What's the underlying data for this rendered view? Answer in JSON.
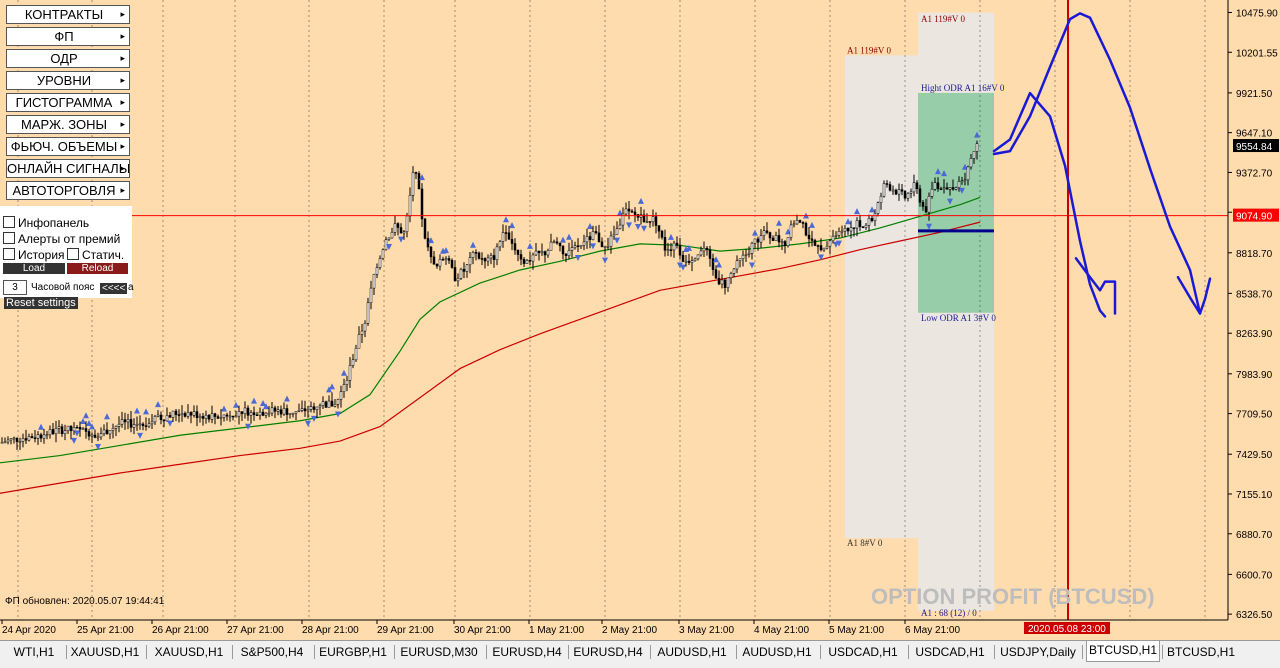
{
  "colors": {
    "background": "#ffdcae",
    "candle": "#000000",
    "ma_fast": "#008000",
    "ma_slow": "#cc0000",
    "level_line": "#ff0000",
    "marker": "#4b6ad6",
    "annotation": "#1a1ad6",
    "band_gray": "#e8e8e8",
    "band_green": "#8fcaa4",
    "highlight_label": "#cc0000",
    "crosshair": "#cc0000"
  },
  "menu": {
    "items": [
      {
        "label": "КОНТРАКТЫ",
        "arrow": "▸"
      },
      {
        "label": "ФП",
        "arrow": "▸"
      },
      {
        "label": "ОДР",
        "arrow": "▸"
      },
      {
        "label": "УРОВНИ",
        "arrow": "▸"
      },
      {
        "label": "ГИСТОГРАММА",
        "arrow": "▸"
      },
      {
        "label": "МАРЖ. ЗОНЫ",
        "arrow": "▸"
      },
      {
        "label": "ФЬЮЧ. ОБЪЕМЫ",
        "arrow": "▸"
      },
      {
        "label": "ОНЛАЙН СИГНАЛЫ",
        "arrow": "▸"
      },
      {
        "label": "АВТОТОРГОВЛЯ",
        "arrow": "▸"
      }
    ]
  },
  "checks": {
    "infopanel": "Инфопанель",
    "alerts": "Алерты от премий",
    "history": "История",
    "static": "Статич.",
    "load": "Load",
    "reload": "Reload",
    "tz_value": "3",
    "tz_label": "Часовой пояс",
    "tz_button": "<<<<",
    "tz_suffix": "а",
    "reset": "Reset settings"
  },
  "status": {
    "fp_updated": "ФП обновлен: 2020.05.07 19:44:41"
  },
  "watermark": "OPTION PROFIT (BTCUSD)",
  "tabs": [
    "WTI,H1",
    "XAUUSD,H1",
    "XAUUSD,H1",
    "S&P500,H4",
    "EURGBP,H1",
    "EURUSD,M30",
    "EURUSD,H4",
    "EURUSD,H4",
    "AUDUSD,H1",
    "AUDUSD,H1",
    "USDCAD,H1",
    "USDCAD,H1",
    "USDJPY,Daily",
    "BTCUSD,H1",
    "BTCUSD,H1"
  ],
  "active_tab": 13,
  "chart_data": {
    "type": "candlestick",
    "symbol": "BTCUSD,H1",
    "y_ticks": [
      10475.9,
      10201.55,
      9921.5,
      9647.1,
      9372.7,
      9098.35,
      8818.7,
      8538.7,
      8263.9,
      7983.9,
      7709.5,
      7429.5,
      7155.1,
      6880.7,
      6600.7,
      6326.5
    ],
    "ylim": [
      6286,
      10562
    ],
    "x_ticks": [
      "24 Apr 2020",
      "25 Apr 21:00",
      "26 Apr 21:00",
      "27 Apr 21:00",
      "28 Apr 21:00",
      "29 Apr 21:00",
      "30 Apr 21:00",
      "1 May 21:00",
      "2 May 21:00",
      "3 May 21:00",
      "4 May 21:00",
      "5 May 21:00",
      "6 May 21:00"
    ],
    "current_price": 9554.84,
    "horizontal_level": 9074.9,
    "crosshair_time": "2020.05.08 23:00",
    "close_path": [
      [
        0,
        7510
      ],
      [
        20,
        7540
      ],
      [
        40,
        7560
      ],
      [
        60,
        7600
      ],
      [
        80,
        7590
      ],
      [
        100,
        7570
      ],
      [
        120,
        7640
      ],
      [
        140,
        7640
      ],
      [
        160,
        7680
      ],
      [
        180,
        7720
      ],
      [
        200,
        7700
      ],
      [
        220,
        7690
      ],
      [
        240,
        7730
      ],
      [
        260,
        7720
      ],
      [
        280,
        7730
      ],
      [
        300,
        7720
      ],
      [
        320,
        7780
      ],
      [
        335,
        7770
      ],
      [
        345,
        7900
      ],
      [
        355,
        8150
      ],
      [
        365,
        8350
      ],
      [
        375,
        8700
      ],
      [
        385,
        8900
      ],
      [
        395,
        9000
      ],
      [
        405,
        8950
      ],
      [
        415,
        9450
      ],
      [
        425,
        8900
      ],
      [
        435,
        8700
      ],
      [
        445,
        8800
      ],
      [
        455,
        8650
      ],
      [
        465,
        8700
      ],
      [
        475,
        8820
      ],
      [
        485,
        8750
      ],
      [
        495,
        8800
      ],
      [
        505,
        9000
      ],
      [
        515,
        8850
      ],
      [
        525,
        8750
      ],
      [
        535,
        8800
      ],
      [
        545,
        8820
      ],
      [
        555,
        8900
      ],
      [
        565,
        8780
      ],
      [
        575,
        8850
      ],
      [
        585,
        8900
      ],
      [
        595,
        8950
      ],
      [
        605,
        8850
      ],
      [
        615,
        8950
      ],
      [
        625,
        9100
      ],
      [
        635,
        9080
      ],
      [
        645,
        9050
      ],
      [
        655,
        9050
      ],
      [
        665,
        8850
      ],
      [
        675,
        8870
      ],
      [
        685,
        8750
      ],
      [
        695,
        8800
      ],
      [
        705,
        8850
      ],
      [
        715,
        8650
      ],
      [
        725,
        8600
      ],
      [
        735,
        8720
      ],
      [
        745,
        8800
      ],
      [
        755,
        8900
      ],
      [
        765,
        8950
      ],
      [
        775,
        8920
      ],
      [
        785,
        8880
      ],
      [
        795,
        9050
      ],
      [
        805,
        8980
      ],
      [
        815,
        8850
      ],
      [
        825,
        8880
      ],
      [
        835,
        8950
      ],
      [
        845,
        8960
      ],
      [
        855,
        9020
      ],
      [
        865,
        9000
      ],
      [
        875,
        9080
      ],
      [
        885,
        9300
      ],
      [
        895,
        9250
      ],
      [
        905,
        9200
      ],
      [
        915,
        9280
      ],
      [
        925,
        9100
      ],
      [
        935,
        9300
      ],
      [
        945,
        9250
      ],
      [
        955,
        9250
      ],
      [
        965,
        9350
      ],
      [
        975,
        9554
      ]
    ],
    "ma_fast": [
      [
        0,
        7370
      ],
      [
        60,
        7420
      ],
      [
        120,
        7490
      ],
      [
        180,
        7560
      ],
      [
        240,
        7610
      ],
      [
        300,
        7660
      ],
      [
        340,
        7710
      ],
      [
        370,
        7840
      ],
      [
        400,
        8140
      ],
      [
        420,
        8360
      ],
      [
        440,
        8480
      ],
      [
        480,
        8610
      ],
      [
        520,
        8700
      ],
      [
        560,
        8760
      ],
      [
        600,
        8830
      ],
      [
        640,
        8880
      ],
      [
        680,
        8870
      ],
      [
        720,
        8830
      ],
      [
        760,
        8850
      ],
      [
        800,
        8880
      ],
      [
        840,
        8920
      ],
      [
        880,
        8990
      ],
      [
        920,
        9070
      ],
      [
        960,
        9150
      ],
      [
        980,
        9200
      ]
    ],
    "ma_slow": [
      [
        0,
        7160
      ],
      [
        60,
        7230
      ],
      [
        120,
        7300
      ],
      [
        180,
        7360
      ],
      [
        240,
        7420
      ],
      [
        300,
        7470
      ],
      [
        340,
        7520
      ],
      [
        380,
        7620
      ],
      [
        420,
        7820
      ],
      [
        460,
        8020
      ],
      [
        500,
        8150
      ],
      [
        540,
        8260
      ],
      [
        580,
        8360
      ],
      [
        620,
        8460
      ],
      [
        660,
        8560
      ],
      [
        700,
        8610
      ],
      [
        740,
        8660
      ],
      [
        780,
        8710
      ],
      [
        820,
        8770
      ],
      [
        860,
        8840
      ],
      [
        900,
        8900
      ],
      [
        940,
        8960
      ],
      [
        980,
        9030
      ]
    ],
    "bands": [
      {
        "from": 845,
        "to": 918,
        "top": 10180,
        "bottom": 6850,
        "label_top": "A1 119#V 0",
        "label_bottom": "A1 8#V 0"
      },
      {
        "from": 918,
        "to": 994,
        "top": 10475,
        "bottom": 6350,
        "label_top": "A1 119#V 0",
        "label_bottom": "A1 : 68 (12) / 0"
      }
    ],
    "odr_box": {
      "from": 918,
      "to": 994,
      "high": 9921,
      "low": 8405,
      "label_high": "Hight ODR A1 16#V 0",
      "label_low": "Low ODR A1 3#V 0",
      "mid_level": 8970
    },
    "forecast_strokes": [
      [
        [
          994,
          9500
        ],
        [
          1010,
          9520
        ],
        [
          1030,
          9760
        ],
        [
          1050,
          10100
        ],
        [
          1070,
          10430
        ],
        [
          1080,
          10470
        ],
        [
          1090,
          10440
        ],
        [
          1110,
          10150
        ],
        [
          1130,
          9820
        ],
        [
          1150,
          9400
        ],
        [
          1170,
          9000
        ],
        [
          1190,
          8700
        ],
        [
          1200,
          8400
        ]
      ],
      [
        [
          994,
          9520
        ],
        [
          1010,
          9600
        ],
        [
          1030,
          9920
        ],
        [
          1050,
          9760
        ],
        [
          1065,
          9420
        ],
        [
          1080,
          8900
        ],
        [
          1090,
          8600
        ],
        [
          1100,
          8420
        ],
        [
          1105,
          8380
        ]
      ],
      [
        [
          1076,
          8780
        ],
        [
          1090,
          8650
        ],
        [
          1100,
          8560
        ],
        [
          1105,
          8620
        ],
        [
          1115,
          8620
        ],
        [
          1115,
          8400
        ]
      ],
      [
        [
          1178,
          8650
        ],
        [
          1190,
          8510
        ],
        [
          1200,
          8400
        ],
        [
          1205,
          8500
        ],
        [
          1210,
          8640
        ]
      ]
    ]
  }
}
